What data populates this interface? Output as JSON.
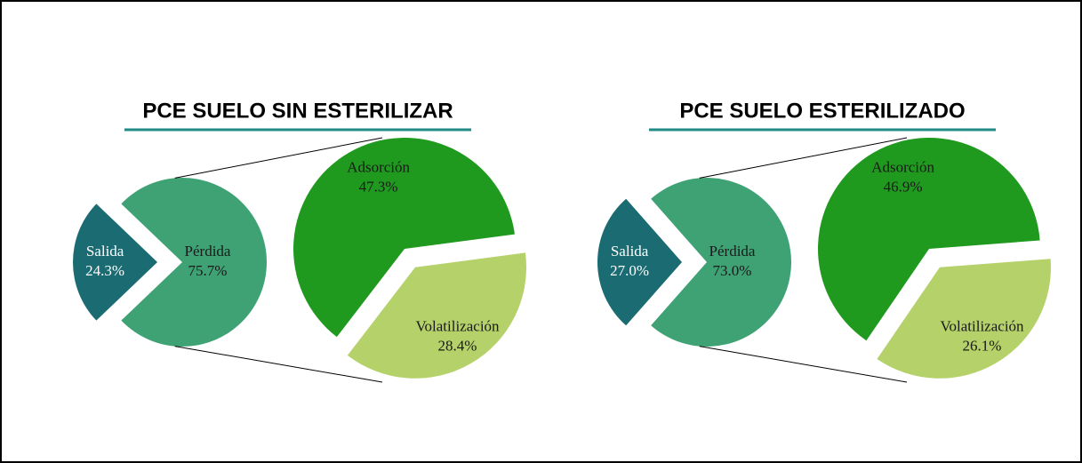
{
  "chart_data": [
    {
      "type": "pie_of_pie",
      "title": "PCE SUELO SIN ESTERILIZAR",
      "categories": [
        "Salida",
        "Pérdida"
      ],
      "values": [
        24.3,
        75.7
      ],
      "value_labels": [
        "24.3%",
        "75.7%"
      ],
      "colors": [
        "#1a6b72",
        "#3fa274"
      ],
      "breakdown": {
        "categories": [
          "Adsorción",
          "Volatilización"
        ],
        "values": [
          47.3,
          28.4
        ],
        "value_labels": [
          "47.3%",
          "28.4%"
        ],
        "colors": [
          "#1f9a1f",
          "#b5d16a"
        ]
      }
    },
    {
      "type": "pie_of_pie",
      "title": "PCE SUELO ESTERILIZADO",
      "categories": [
        "Salida",
        "Pérdida"
      ],
      "values": [
        27.0,
        73.0
      ],
      "value_labels": [
        "27.0%",
        "73.0%"
      ],
      "colors": [
        "#1a6b72",
        "#3fa274"
      ],
      "breakdown": {
        "categories": [
          "Adsorción",
          "Volatilización"
        ],
        "values": [
          46.9,
          26.1
        ],
        "value_labels": [
          "46.9%",
          "26.1%"
        ],
        "colors": [
          "#1f9a1f",
          "#b5d16a"
        ]
      }
    }
  ]
}
